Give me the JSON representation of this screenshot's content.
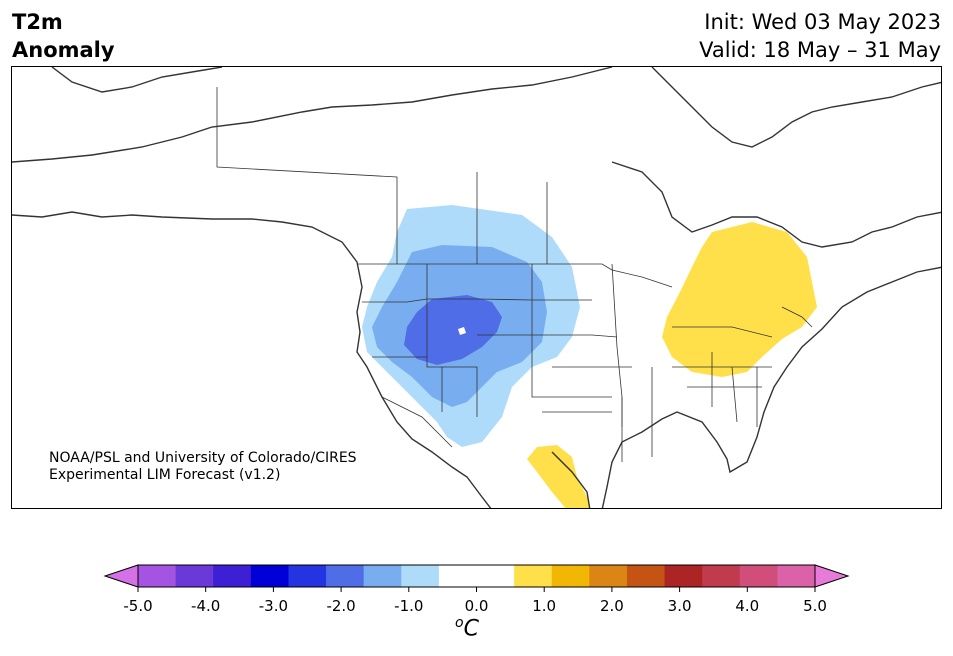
{
  "title": {
    "variable": "T2m",
    "subtitle": "Anomaly",
    "init": "Init: Wed 03 May 2023",
    "valid": "Valid: 18 May – 31 May"
  },
  "credit": {
    "line1": "NOAA/PSL and University of Colorado/CIRES",
    "line2": "Experimental LIM Forecast (v1.2)"
  },
  "colorbar": {
    "unit_symbol": "o",
    "unit_letter": "C",
    "min_color": "#d670e6",
    "max_color": "#e87ada",
    "colors": [
      "#a454e0",
      "#6a3ad9",
      "#3d1fd6",
      "#0000d6",
      "#2434e0",
      "#4f6de6",
      "#78aeef",
      "#aedbfa",
      "#ffffff",
      "#ffffff",
      "#ffe04a",
      "#f2b705",
      "#db8514",
      "#c45414",
      "#ad2424",
      "#c23a4e",
      "#d14e7a",
      "#db62a8"
    ],
    "ticks": [
      "-5.0",
      "-4.0",
      "-3.0",
      "-2.0",
      "-1.0",
      "0.0",
      "1.0",
      "2.0",
      "3.0",
      "4.0",
      "5.0"
    ]
  },
  "anomaly_colors": {
    "cool_light": "#aedbfa",
    "cool_mid": "#78aeef",
    "cool_dark": "#4f6de6",
    "warm_light": "#ffe04a"
  }
}
